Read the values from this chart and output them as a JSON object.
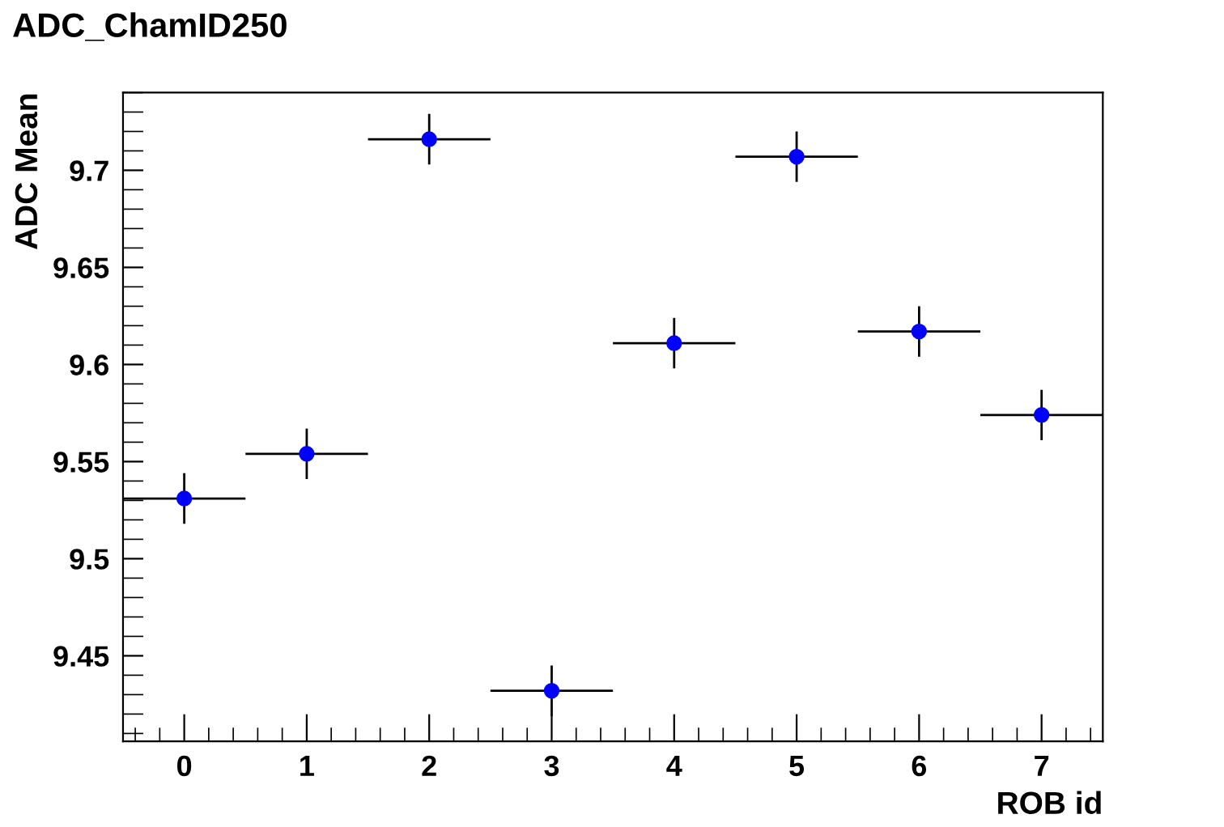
{
  "chart_data": {
    "type": "scatter",
    "title": "ADC_ChamID250",
    "xlabel": "ROB id",
    "ylabel": "ADC Mean",
    "x": [
      0,
      1,
      2,
      3,
      4,
      5,
      6,
      7
    ],
    "series": [
      {
        "color": "#0000ff",
        "values": [
          9.531,
          9.554,
          9.716,
          9.432,
          9.611,
          9.707,
          9.617,
          9.574
        ],
        "errors": [
          0.013,
          0.013,
          0.013,
          0.013,
          0.013,
          0.013,
          0.013,
          0.013
        ],
        "xerrors": [
          0.5,
          0.5,
          0.5,
          0.5,
          0.5,
          0.5,
          0.5,
          0.5
        ]
      }
    ],
    "xlim": [
      -0.5,
      7.5
    ],
    "xticks": [
      {
        "value": -0.4,
        "label": null
      },
      {
        "value": -0.2,
        "label": null
      },
      0,
      {
        "value": 0.2,
        "label": null
      },
      {
        "value": 0.4,
        "label": null
      },
      {
        "value": 0.6,
        "label": null
      },
      {
        "value": 0.8,
        "label": null
      },
      1,
      {
        "value": 1.2,
        "label": null
      },
      {
        "value": 1.4,
        "label": null
      },
      {
        "value": 1.6,
        "label": null
      },
      {
        "value": 1.8,
        "label": null
      },
      2,
      {
        "value": 2.2,
        "label": null
      },
      {
        "value": 2.4,
        "label": null
      },
      {
        "value": 2.6,
        "label": null
      },
      {
        "value": 2.8,
        "label": null
      },
      3,
      {
        "value": 3.2,
        "label": null
      },
      {
        "value": 3.4,
        "label": null
      },
      {
        "value": 3.6,
        "label": null
      },
      {
        "value": 3.8,
        "label": null
      },
      4,
      {
        "value": 4.2,
        "label": null
      },
      {
        "value": 4.4,
        "label": null
      },
      {
        "value": 4.6,
        "label": null
      },
      {
        "value": 4.8,
        "label": null
      },
      5,
      {
        "value": 5.2,
        "label": null
      },
      {
        "value": 5.4,
        "label": null
      },
      {
        "value": 5.6,
        "label": null
      },
      {
        "value": 5.8,
        "label": null
      },
      6,
      {
        "value": 6.2,
        "label": null
      },
      {
        "value": 6.4,
        "label": null
      },
      {
        "value": 6.6,
        "label": null
      },
      {
        "value": 6.8,
        "label": null
      },
      7,
      {
        "value": 7.2,
        "label": null
      },
      {
        "value": 7.4,
        "label": null
      }
    ],
    "ylim": [
      9.406,
      9.74
    ],
    "yticks": [
      {
        "value": 9.41,
        "label": null
      },
      {
        "value": 9.42,
        "label": null
      },
      {
        "value": 9.43,
        "label": null
      },
      {
        "value": 9.44,
        "label": null
      },
      9.45,
      {
        "value": 9.46,
        "label": null
      },
      {
        "value": 9.47,
        "label": null
      },
      {
        "value": 9.48,
        "label": null
      },
      {
        "value": 9.49,
        "label": null
      },
      9.5,
      {
        "value": 9.51,
        "label": null
      },
      {
        "value": 9.52,
        "label": null
      },
      {
        "value": 9.53,
        "label": null
      },
      {
        "value": 9.54,
        "label": null
      },
      9.55,
      {
        "value": 9.56,
        "label": null
      },
      {
        "value": 9.57,
        "label": null
      },
      {
        "value": 9.58,
        "label": null
      },
      {
        "value": 9.59,
        "label": null
      },
      9.6,
      {
        "value": 9.61,
        "label": null
      },
      {
        "value": 9.62,
        "label": null
      },
      {
        "value": 9.63,
        "label": null
      },
      {
        "value": 9.64,
        "label": null
      },
      9.65,
      {
        "value": 9.66,
        "label": null
      },
      {
        "value": 9.67,
        "label": null
      },
      {
        "value": 9.68,
        "label": null
      },
      {
        "value": 9.69,
        "label": null
      },
      9.7,
      {
        "value": 9.71,
        "label": null
      },
      {
        "value": 9.72,
        "label": null
      },
      {
        "value": 9.73,
        "label": null
      },
      {
        "value": 9.74,
        "label": null
      }
    ],
    "marker": "circle",
    "grid": false,
    "legend": false
  }
}
